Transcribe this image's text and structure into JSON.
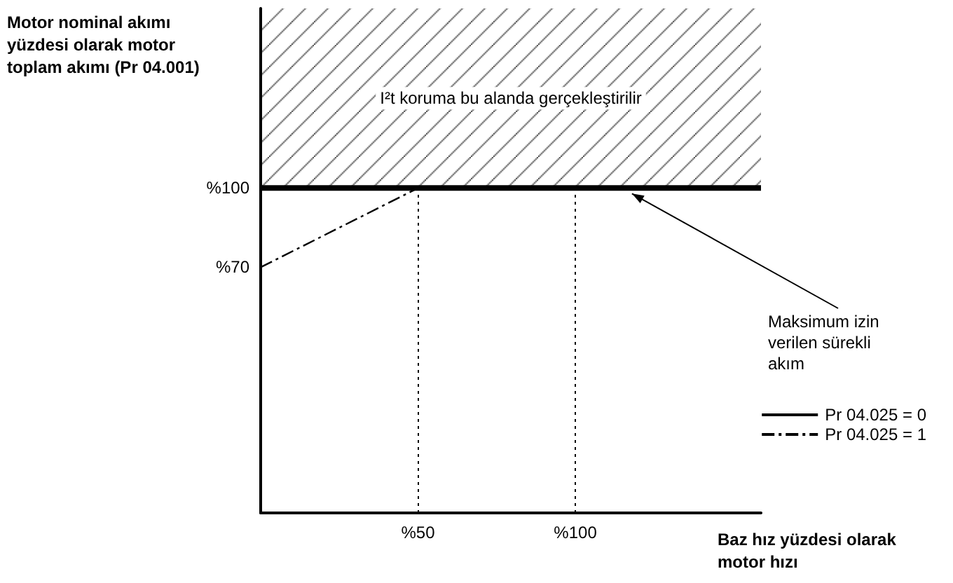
{
  "chart_data": {
    "type": "line",
    "ylabel": "Motor nominal akımı yüzdesi olarak motor toplam akımı (Pr 04.001)",
    "xlabel": "Baz hız yüzdesi olarak motor hızı",
    "xlim": [
      0,
      159
    ],
    "ylim": [
      -23,
      168
    ],
    "xticks": [
      {
        "value": 50,
        "label": "%50"
      },
      {
        "value": 100,
        "label": "%100"
      }
    ],
    "yticks": [
      {
        "value": 70,
        "label": "%70"
      },
      {
        "value": 100,
        "label": "%100"
      }
    ],
    "series": [
      {
        "name": "Pr 04.025 = 0",
        "color": "#000000",
        "line_style": "solid",
        "x": [
          0,
          159
        ],
        "values": [
          100,
          100
        ]
      },
      {
        "name": "Pr 04.025 = 1",
        "color": "#000000",
        "line_style": "dashed",
        "x": [
          0,
          50
        ],
        "values": [
          70,
          100
        ]
      }
    ],
    "bands": [
      {
        "axis": "y",
        "from": 100,
        "to": 168,
        "label": "I²t koruma bu alanda gerçekleştirilir",
        "color": "#000000"
      }
    ],
    "ref_lines": [
      {
        "axis": "x",
        "value": 50,
        "line_style": "dotted"
      },
      {
        "axis": "x",
        "value": 100,
        "line_style": "dotted"
      }
    ],
    "annotations": [
      {
        "text": "Maksimum izin verilen sürekli akım",
        "x": 118,
        "y": 100
      }
    ],
    "marker": "none",
    "grid": false,
    "legend": "bottom right"
  }
}
